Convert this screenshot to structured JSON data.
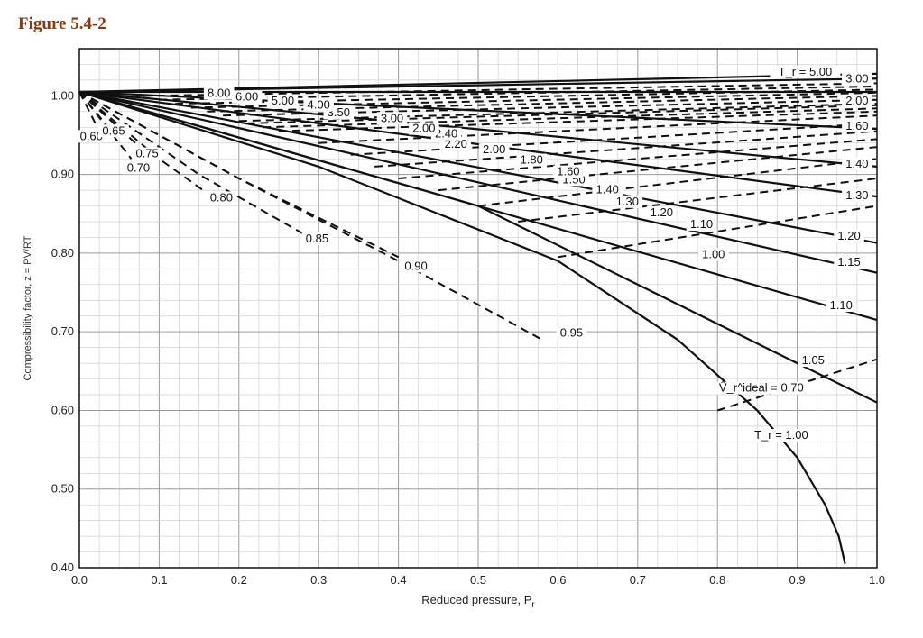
{
  "figure": {
    "title": "Figure 5.4-2"
  },
  "chart_data": {
    "type": "line",
    "title": "",
    "xlabel": "Reduced pressure, P",
    "xlabel_sub": "r",
    "ylabel": "Compressibility factor, z = PV/RT",
    "xlim": [
      0.0,
      1.0
    ],
    "ylim": [
      0.4,
      1.06
    ],
    "x_ticks": [
      "0.0",
      "0.1",
      "0.2",
      "0.3",
      "0.4",
      "0.5",
      "0.6",
      "0.7",
      "0.8",
      "0.9",
      "1.0"
    ],
    "y_ticks": [
      "1.00",
      "0.90",
      "0.80",
      "0.70",
      "0.60",
      "0.50",
      "0.40"
    ],
    "grid": true,
    "series": [
      {
        "family": "Tr",
        "style": "solid",
        "name": "5.00",
        "label_prefix": "T_r = ",
        "points": [
          [
            0,
            1.005
          ],
          [
            1.0,
            1.028
          ]
        ],
        "label_at": [
          0.91,
          1.027
        ]
      },
      {
        "family": "Tr",
        "style": "solid",
        "name": "3.00",
        "points": [
          [
            0,
            1.005
          ],
          [
            1.0,
            1.022
          ]
        ],
        "label_at": [
          0.975,
          1.018
        ]
      },
      {
        "family": "Tr",
        "style": "solid",
        "name": "2.00",
        "points": [
          [
            0,
            1.005
          ],
          [
            1.0,
            1.005
          ]
        ],
        "label_at": [
          0.975,
          0.99
        ]
      },
      {
        "family": "Tr",
        "style": "solid",
        "name": "1.60",
        "points": [
          [
            0,
            1.005
          ],
          [
            1.0,
            0.958
          ]
        ],
        "label_at": [
          0.975,
          0.958
        ]
      },
      {
        "family": "Tr",
        "style": "solid",
        "name": "1.40",
        "points": [
          [
            0,
            1.005
          ],
          [
            1.0,
            0.91
          ]
        ],
        "label_at": [
          0.975,
          0.91
        ]
      },
      {
        "family": "Tr",
        "style": "solid",
        "name": "1.30",
        "points": [
          [
            0,
            1.005
          ],
          [
            1.0,
            0.872
          ]
        ],
        "label_at": [
          0.975,
          0.87
        ]
      },
      {
        "family": "Tr",
        "style": "solid",
        "name": "1.20",
        "points": [
          [
            0,
            1.005
          ],
          [
            1.0,
            0.813
          ]
        ],
        "label_at": [
          0.965,
          0.818
        ]
      },
      {
        "family": "Tr",
        "style": "solid",
        "name": "1.15",
        "points": [
          [
            0,
            1.005
          ],
          [
            1.0,
            0.775
          ]
        ],
        "label_at": [
          0.965,
          0.785
        ]
      },
      {
        "family": "Tr",
        "style": "solid",
        "name": "1.10",
        "points": [
          [
            0,
            1.005
          ],
          [
            1.0,
            0.715
          ]
        ],
        "label_at": [
          0.955,
          0.73
        ]
      },
      {
        "family": "Tr",
        "style": "solid",
        "name": "1.05",
        "points": [
          [
            0,
            1.005
          ],
          [
            0.5,
            0.86
          ],
          [
            1.0,
            0.61
          ]
        ],
        "label_at": [
          0.92,
          0.66
        ]
      },
      {
        "family": "Tr",
        "style": "solid",
        "name": "1.00",
        "label_prefix": "T_r = ",
        "points": [
          [
            0,
            1.005
          ],
          [
            0.3,
            0.91
          ],
          [
            0.6,
            0.79
          ],
          [
            0.75,
            0.69
          ],
          [
            0.85,
            0.6
          ],
          [
            0.9,
            0.54
          ],
          [
            0.935,
            0.48
          ],
          [
            0.952,
            0.44
          ],
          [
            0.96,
            0.405
          ]
        ],
        "label_at": [
          0.88,
          0.565
        ]
      },
      {
        "family": "Vr",
        "style": "dashed",
        "name": "0.60",
        "points": [
          [
            0,
            1.005
          ],
          [
            0.02,
            0.965
          ]
        ],
        "label_at": [
          0.015,
          0.945
        ]
      },
      {
        "family": "Vr",
        "style": "dashed",
        "name": "0.65",
        "points": [
          [
            0,
            1.005
          ],
          [
            0.04,
            0.955
          ]
        ],
        "label_at": [
          0.043,
          0.952
        ]
      },
      {
        "family": "Vr",
        "style": "dashed",
        "name": "0.70",
        "points": [
          [
            0,
            1.005
          ],
          [
            0.065,
            0.92
          ]
        ],
        "label_at": [
          0.074,
          0.905
        ]
      },
      {
        "family": "Vr",
        "style": "dashed",
        "name": "0.75",
        "points": [
          [
            0,
            1.005
          ],
          [
            0.07,
            0.94
          ]
        ],
        "label_at": [
          0.085,
          0.923
        ]
      },
      {
        "family": "Vr",
        "style": "dashed",
        "name": "0.80",
        "points": [
          [
            0,
            1.005
          ],
          [
            0.1,
            0.92
          ],
          [
            0.155,
            0.88
          ]
        ],
        "label_at": [
          0.178,
          0.867
        ]
      },
      {
        "family": "Vr",
        "style": "dashed",
        "name": "0.85",
        "points": [
          [
            0,
            1.005
          ],
          [
            0.15,
            0.9
          ],
          [
            0.28,
            0.825
          ]
        ],
        "label_at": [
          0.298,
          0.815
        ]
      },
      {
        "family": "Vr",
        "style": "dashed",
        "name": "0.90",
        "points": [
          [
            0,
            1.005
          ],
          [
            0.2,
            0.895
          ],
          [
            0.4,
            0.795
          ]
        ],
        "label_at": [
          0.422,
          0.78
        ]
      },
      {
        "family": "Vr",
        "style": "dashed",
        "name": "0.95",
        "points": [
          [
            0,
            1.005
          ],
          [
            0.2,
            0.895
          ],
          [
            0.4,
            0.79
          ],
          [
            0.58,
            0.69
          ]
        ],
        "label_at": [
          0.617,
          0.695
        ]
      },
      {
        "family": "Vr",
        "style": "dashed",
        "name": "1.00",
        "points": [
          [
            0.6,
            0.795
          ],
          [
            1.0,
            0.86
          ]
        ],
        "label_at": [
          0.795,
          0.795
        ]
      },
      {
        "family": "Vr",
        "style": "dashed",
        "name": "1.10",
        "points": [
          [
            0.55,
            0.84
          ],
          [
            1.0,
            0.895
          ]
        ],
        "label_at": [
          0.78,
          0.833
        ]
      },
      {
        "family": "Vr",
        "style": "dashed",
        "name": "1.20",
        "points": [
          [
            0.5,
            0.86
          ],
          [
            1.0,
            0.92
          ]
        ],
        "label_at": [
          0.73,
          0.848
        ]
      },
      {
        "family": "Vr",
        "style": "dashed",
        "name": "1.30",
        "points": [
          [
            0.45,
            0.88
          ],
          [
            1.0,
            0.935
          ]
        ],
        "label_at": [
          0.687,
          0.862
        ]
      },
      {
        "family": "Vr",
        "style": "dashed",
        "name": "1.40",
        "points": [
          [
            0.4,
            0.895
          ],
          [
            1.0,
            0.945
          ]
        ],
        "label_at": [
          0.662,
          0.877
        ]
      },
      {
        "family": "Vr",
        "style": "dashed",
        "name": "1.50",
        "points": [
          [
            0.37,
            0.91
          ],
          [
            1.0,
            0.955
          ]
        ],
        "label_at": [
          0.62,
          0.89
        ]
      },
      {
        "family": "Vr",
        "style": "dashed",
        "name": "1.60",
        "points": [
          [
            0.34,
            0.925
          ],
          [
            1.0,
            0.965
          ]
        ],
        "label_at": [
          0.613,
          0.9
        ]
      },
      {
        "family": "Vr",
        "style": "dashed",
        "name": "1.80",
        "points": [
          [
            0.3,
            0.94
          ],
          [
            1.0,
            0.975
          ]
        ],
        "label_at": [
          0.567,
          0.915
        ]
      },
      {
        "family": "Vr",
        "style": "dashed",
        "name": "2.00",
        "points": [
          [
            0.25,
            0.955
          ],
          [
            1.0,
            0.98
          ]
        ],
        "label_at": [
          0.52,
          0.928
        ]
      },
      {
        "family": "Vr",
        "style": "dashed",
        "name": "2.20",
        "points": [
          [
            0.23,
            0.96
          ],
          [
            1.0,
            0.984
          ]
        ],
        "label_at": [
          0.472,
          0.935
        ]
      },
      {
        "family": "Vr",
        "style": "dashed",
        "name": "2.40",
        "points": [
          [
            0.21,
            0.965
          ],
          [
            1.0,
            0.988
          ]
        ],
        "label_at": [
          0.46,
          0.948
        ]
      },
      {
        "family": "Vr",
        "style": "dashed",
        "name": "2.00",
        "points": [
          [
            0.2,
            0.968
          ],
          [
            1.0,
            0.99
          ]
        ],
        "label_at": [
          0.432,
          0.955
        ]
      },
      {
        "family": "Vr",
        "style": "dashed",
        "name": "3.00",
        "points": [
          [
            0.18,
            0.975
          ],
          [
            1.0,
            0.995
          ]
        ],
        "label_at": [
          0.392,
          0.968
        ]
      },
      {
        "family": "Vr",
        "style": "dashed",
        "name": "3.50",
        "points": [
          [
            0.16,
            0.98
          ],
          [
            1.0,
            1.0
          ]
        ],
        "label_at": [
          0.325,
          0.975
        ]
      },
      {
        "family": "Vr",
        "style": "dashed",
        "name": "4.00",
        "points": [
          [
            0.14,
            0.985
          ],
          [
            1.0,
            1.004
          ]
        ],
        "label_at": [
          0.3,
          0.985
        ]
      },
      {
        "family": "Vr",
        "style": "dashed",
        "name": "5.00",
        "points": [
          [
            0.12,
            0.99
          ],
          [
            1.0,
            1.008
          ]
        ],
        "label_at": [
          0.255,
          0.99
        ]
      },
      {
        "family": "Vr",
        "style": "dashed",
        "name": "6.00",
        "points": [
          [
            0.1,
            0.995
          ],
          [
            1.0,
            1.012
          ]
        ],
        "label_at": [
          0.21,
          0.995
        ]
      },
      {
        "family": "Vr",
        "style": "dashed",
        "name": "8.00",
        "points": [
          [
            0.08,
            1.0
          ],
          [
            1.0,
            1.016
          ]
        ],
        "label_at": [
          0.175,
          1.0
        ]
      },
      {
        "family": "Vr",
        "style": "dashed",
        "name": "0.70",
        "label_prefix": "V̂_r^ideal = ",
        "points": [
          [
            0.8,
            0.6
          ],
          [
            1.0,
            0.665
          ]
        ],
        "label_at": [
          0.855,
          0.625
        ]
      }
    ]
  }
}
